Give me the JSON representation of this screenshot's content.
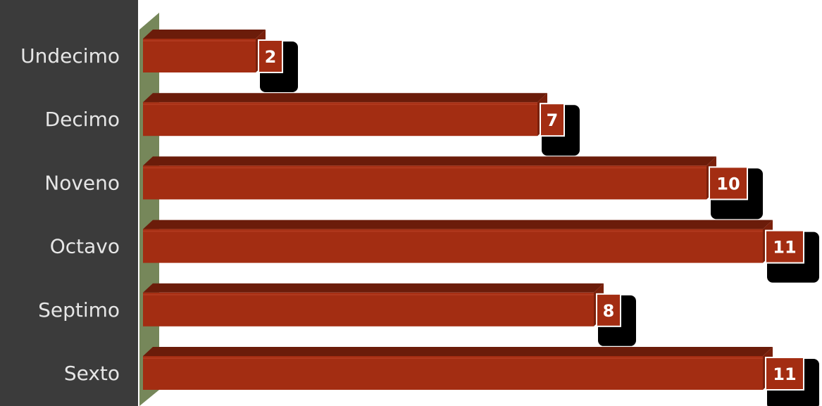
{
  "chart_data": {
    "type": "bar",
    "orientation": "horizontal",
    "categories": [
      "Undecimo",
      "Decimo",
      "Noveno",
      "Octavo",
      "Septimo",
      "Sexto"
    ],
    "values": [
      2,
      7,
      10,
      11,
      8,
      11
    ],
    "xlim": [
      0,
      11.3
    ],
    "grid": false,
    "legend": "none",
    "style": "3d"
  },
  "colors": {
    "background": "#3b3b3b",
    "plot_area": "#ffffff",
    "bar_front": "#a32d12",
    "bar_top": "#6b1c0a",
    "bar_side": "#7a200b",
    "wall": "#76875a",
    "label_box": "#a32d12",
    "label_shadow": "#000000",
    "category_text": "#e6e6e6"
  }
}
